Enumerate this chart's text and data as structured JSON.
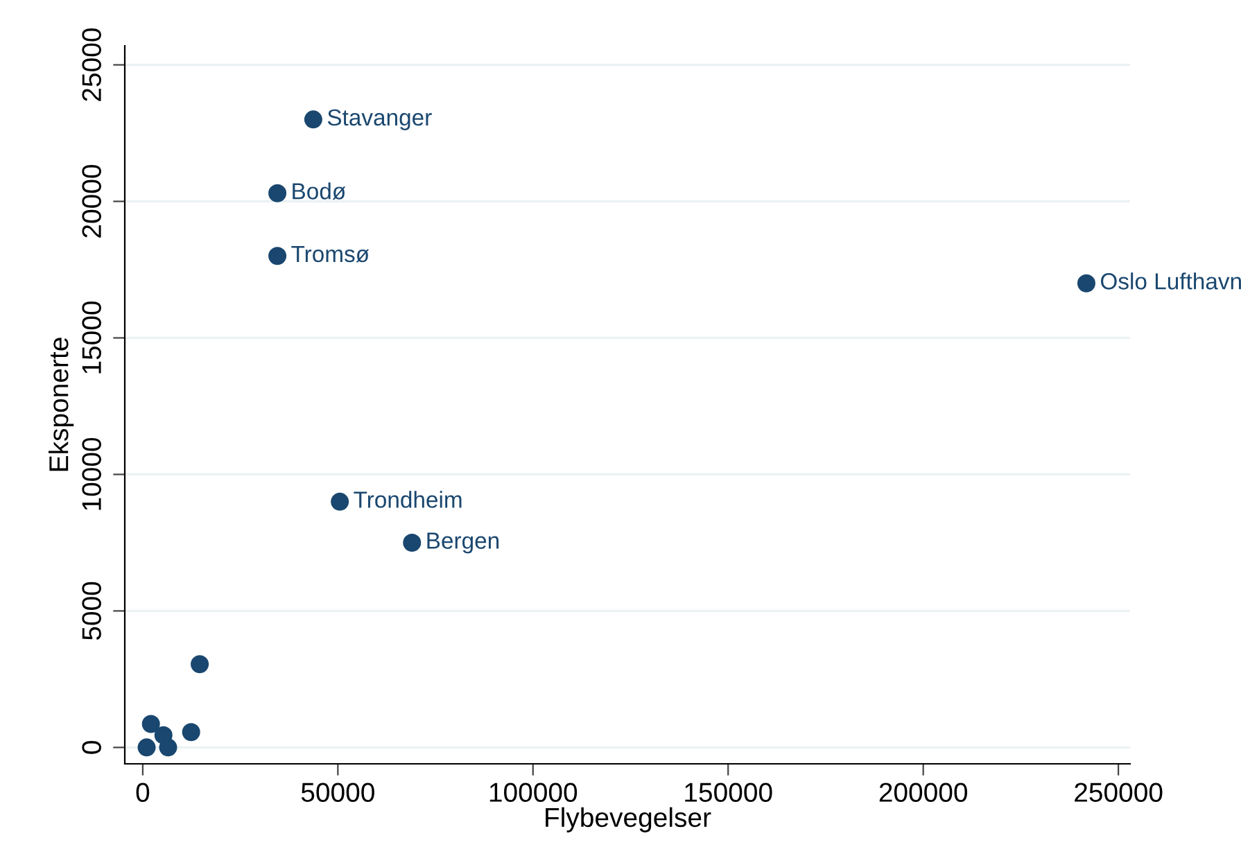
{
  "chart_data": {
    "type": "scatter",
    "xlabel": "Flybevegelser",
    "ylabel": "Eksponerte",
    "x": [
      43700,
      34500,
      34500,
      241800,
      50500,
      69000,
      14600,
      12400,
      2100,
      5300,
      1000,
      6500
    ],
    "series": [
      {
        "color": "#1a476f",
        "values": [
          23000,
          20300,
          18000,
          17000,
          9000,
          7500,
          3050,
          560,
          860,
          450,
          0,
          0
        ]
      }
    ],
    "annotations": [
      {
        "text": "Stavanger",
        "x": 43700,
        "y": 23000
      },
      {
        "text": "Bodø",
        "x": 34500,
        "y": 20300
      },
      {
        "text": "Tromsø",
        "x": 34500,
        "y": 18000
      },
      {
        "text": "Oslo Lufthavn",
        "x": 241800,
        "y": 17000
      },
      {
        "text": "Trondheim",
        "x": 50500,
        "y": 9000
      },
      {
        "text": "Bergen",
        "x": 69000,
        "y": 7500
      }
    ],
    "xlim": [
      -4600,
      253000
    ],
    "ylim": [
      -600,
      25700
    ],
    "xticks": [
      0,
      50000,
      100000,
      150000,
      200000,
      250000
    ],
    "yticks": [
      0,
      5000,
      10000,
      15000,
      20000,
      25000
    ],
    "grid": "y",
    "marker": "circle",
    "legend": false
  }
}
